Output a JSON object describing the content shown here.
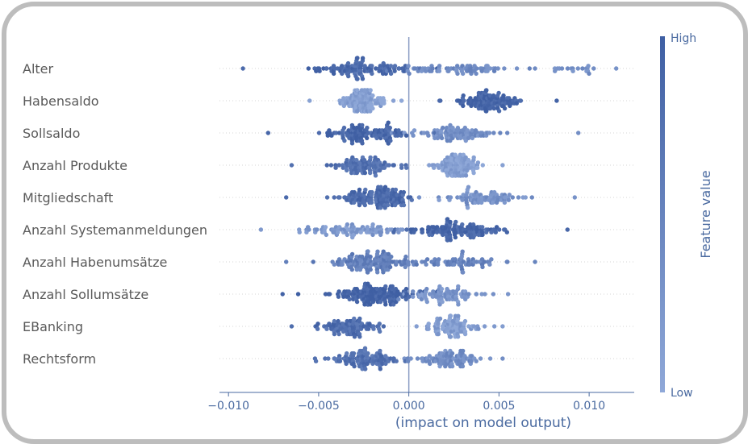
{
  "chart_data": {
    "type": "scatter",
    "subtype": "beeswarm",
    "xlabel": "(impact on model output)",
    "xlim": [
      -0.0105,
      0.0125
    ],
    "xticks": [
      -0.01,
      -0.005,
      0.0,
      0.005,
      0.01
    ],
    "xtick_labels": [
      "−0.010",
      "−0.005",
      "0.000",
      "0.005",
      "0.010"
    ],
    "colorbar": {
      "title": "Feature value",
      "high_label": "High",
      "low_label": "Low",
      "high_color": "#3f5fa3",
      "low_color": "#8fa8d8"
    },
    "features": [
      {
        "name": "Alter",
        "range": [
          -0.0092,
          0.0115
        ],
        "clusters": [
          {
            "center": -0.0025,
            "spread": 0.0028,
            "n": 110,
            "value": 0.85
          },
          {
            "center": 0.0028,
            "spread": 0.003,
            "n": 70,
            "value": 0.4
          },
          {
            "center": 0.009,
            "spread": 0.0015,
            "n": 18,
            "value": 0.3
          }
        ]
      },
      {
        "name": "Habensaldo",
        "range": [
          -0.0055,
          0.0082
        ],
        "clusters": [
          {
            "center": -0.0025,
            "spread": 0.001,
            "n": 120,
            "value": 0.1
          },
          {
            "center": 0.0045,
            "spread": 0.0015,
            "n": 110,
            "value": 0.95
          }
        ]
      },
      {
        "name": "Sollsaldo",
        "range": [
          -0.0078,
          0.0094
        ],
        "clusters": [
          {
            "center": -0.0025,
            "spread": 0.0022,
            "n": 110,
            "value": 0.9
          },
          {
            "center": 0.0025,
            "spread": 0.0022,
            "n": 90,
            "value": 0.35
          }
        ]
      },
      {
        "name": "Anzahl Produkte",
        "range": [
          -0.0065,
          0.0052
        ],
        "clusters": [
          {
            "center": -0.0025,
            "spread": 0.0016,
            "n": 90,
            "value": 0.75
          },
          {
            "center": 0.0025,
            "spread": 0.0012,
            "n": 110,
            "value": 0.1
          }
        ]
      },
      {
        "name": "Mitgliedschaft",
        "range": [
          -0.0068,
          0.0092
        ],
        "clusters": [
          {
            "center": -0.0018,
            "spread": 0.002,
            "n": 130,
            "value": 0.85
          },
          {
            "center": 0.004,
            "spread": 0.0022,
            "n": 80,
            "value": 0.3
          }
        ]
      },
      {
        "name": "Anzahl Systemanmeldungen",
        "range": [
          -0.0082,
          0.0088
        ],
        "clusters": [
          {
            "center": -0.003,
            "spread": 0.0025,
            "n": 80,
            "value": 0.2
          },
          {
            "center": 0.0025,
            "spread": 0.0025,
            "n": 120,
            "value": 0.9
          }
        ]
      },
      {
        "name": "Anzahl Habenumsätze",
        "range": [
          -0.0068,
          0.007
        ],
        "clusters": [
          {
            "center": -0.002,
            "spread": 0.002,
            "n": 130,
            "value": 0.55
          },
          {
            "center": 0.003,
            "spread": 0.0018,
            "n": 60,
            "value": 0.5
          }
        ]
      },
      {
        "name": "Anzahl Sollumsätze",
        "range": [
          -0.007,
          0.0055
        ],
        "clusters": [
          {
            "center": -0.002,
            "spread": 0.002,
            "n": 140,
            "value": 0.95
          },
          {
            "center": 0.002,
            "spread": 0.0018,
            "n": 80,
            "value": 0.25
          }
        ]
      },
      {
        "name": "EBanking",
        "range": [
          -0.0065,
          0.0052
        ],
        "clusters": [
          {
            "center": -0.003,
            "spread": 0.0015,
            "n": 90,
            "value": 0.8
          },
          {
            "center": 0.0025,
            "spread": 0.0012,
            "n": 90,
            "value": 0.15
          }
        ]
      },
      {
        "name": "Rechtsform",
        "range": [
          -0.0052,
          0.0052
        ],
        "clusters": [
          {
            "center": -0.0025,
            "spread": 0.0016,
            "n": 100,
            "value": 0.75
          },
          {
            "center": 0.002,
            "spread": 0.0016,
            "n": 90,
            "value": 0.35
          }
        ]
      }
    ]
  }
}
